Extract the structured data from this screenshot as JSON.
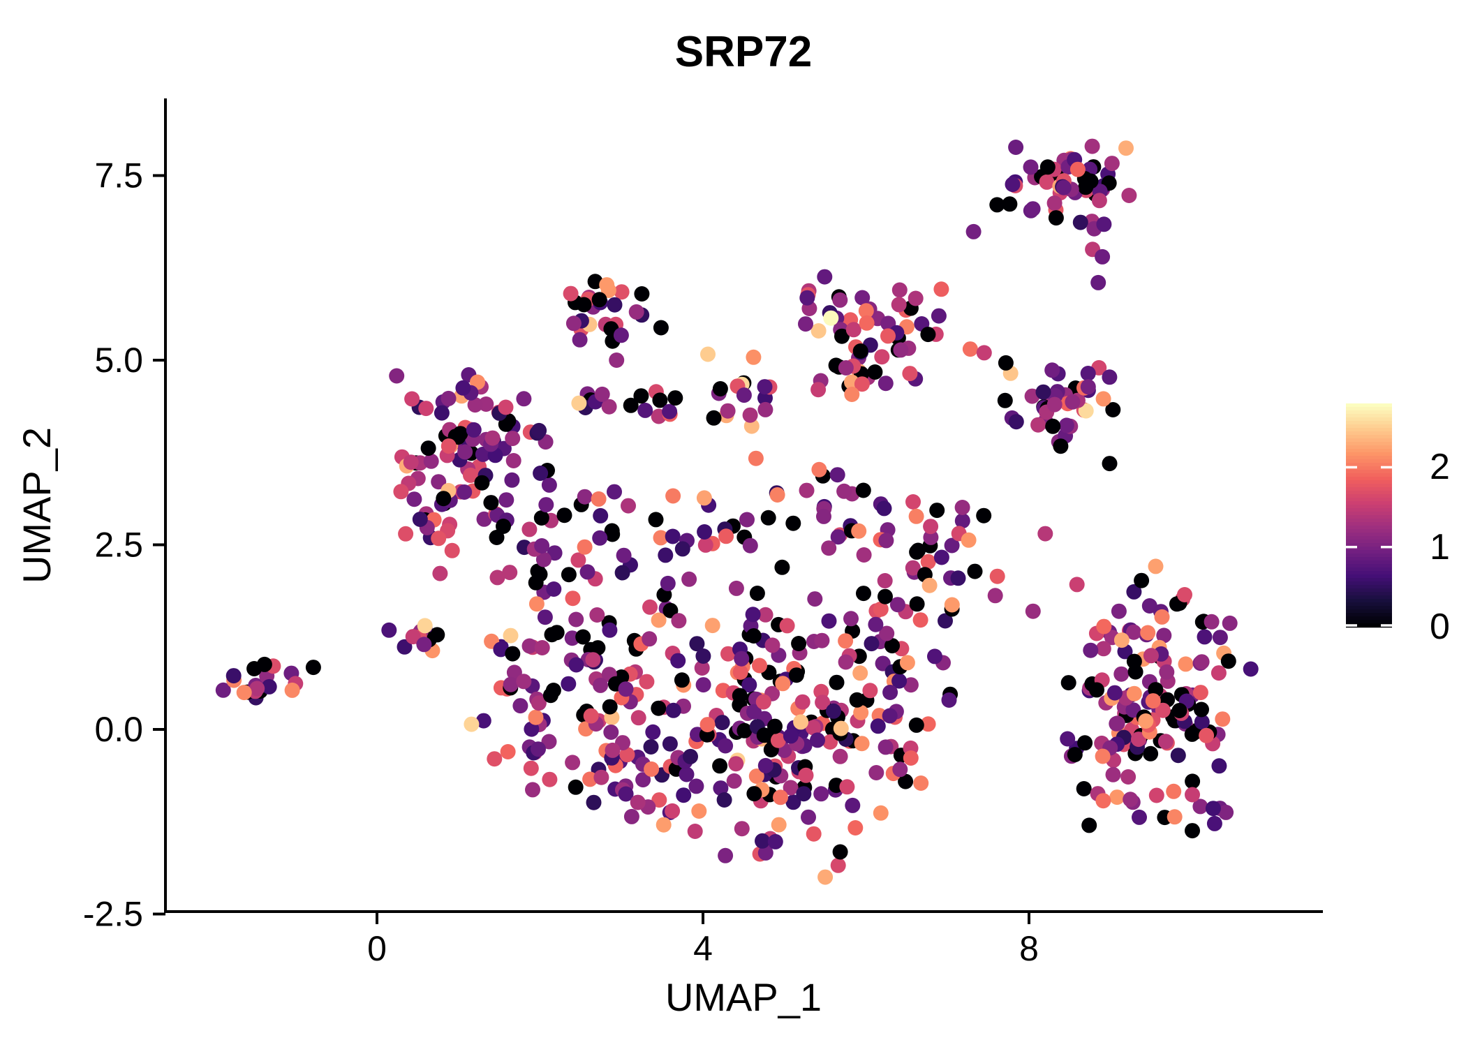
{
  "title": "SRP72",
  "chart_data": {
    "type": "scatter",
    "title": "SRP72",
    "xlabel": "UMAP_1",
    "ylabel": "UMAP_2",
    "xlim": [
      -2.6,
      11.6
    ],
    "ylim": [
      -2.45,
      8.55
    ],
    "grid": false,
    "background": "#ffffff",
    "axis_color": "#000000",
    "point_radius_px": 11,
    "xticks": [
      {
        "value": 0,
        "label": "0"
      },
      {
        "value": 4,
        "label": "4"
      },
      {
        "value": 8,
        "label": "8"
      }
    ],
    "yticks": [
      {
        "value": -2.5,
        "label": "-2.5"
      },
      {
        "value": 0.0,
        "label": "0.0"
      },
      {
        "value": 2.5,
        "label": "2.5"
      },
      {
        "value": 5.0,
        "label": "5.0"
      },
      {
        "value": 7.5,
        "label": "7.5"
      }
    ],
    "colormap": {
      "name": "magma",
      "anchors": [
        "#000004",
        "#180f3d",
        "#440f76",
        "#721f81",
        "#9e2f7f",
        "#cd4071",
        "#f1605d",
        "#fd9567",
        "#feca8d",
        "#fcfdbf"
      ]
    },
    "color_domain": [
      0,
      2.8
    ],
    "legend": {
      "position": "right",
      "ticks": [
        {
          "value": 2,
          "label": "2"
        },
        {
          "value": 1,
          "label": "1"
        },
        {
          "value": 0,
          "label": "0"
        }
      ]
    },
    "seed": 7,
    "value_distribution_bins": [
      [
        0,
        0,
        21
      ],
      [
        0.45,
        0.95,
        27
      ],
      [
        0.95,
        1.35,
        21
      ],
      [
        1.35,
        1.85,
        19
      ],
      [
        1.85,
        2.3,
        10
      ],
      [
        2.3,
        2.6,
        2
      ]
    ],
    "clusters": [
      {
        "name": "top-right",
        "cx": 8.45,
        "cy": 7.45,
        "sx": 0.4,
        "sy": 0.28,
        "n": 50,
        "clip": [
          7.6,
          9.25,
          6.85,
          7.97
        ]
      },
      {
        "name": "right-middle",
        "cx": 8.5,
        "cy": 4.4,
        "sx": 0.42,
        "sy": 0.4,
        "n": 42,
        "clip": [
          7.7,
          9.35,
          3.55,
          5.2
        ]
      },
      {
        "name": "top-middle",
        "cx": 5.95,
        "cy": 5.4,
        "sx": 0.48,
        "sy": 0.45,
        "n": 62,
        "clip": [
          5.0,
          6.95,
          4.5,
          6.3
        ]
      },
      {
        "name": "top-left-small",
        "cx": 2.85,
        "cy": 5.62,
        "sx": 0.32,
        "sy": 0.3,
        "n": 27,
        "clip": [
          2.25,
          3.5,
          5.0,
          6.3
        ]
      },
      {
        "name": "left",
        "cx": 1.05,
        "cy": 3.75,
        "sx": 0.5,
        "sy": 0.55,
        "n": 95,
        "clip": [
          0.2,
          2.15,
          2.45,
          4.9
        ]
      },
      {
        "name": "left-tail",
        "cx": 1.6,
        "cy": 2.4,
        "sx": 0.5,
        "sy": 0.4,
        "n": 14,
        "clip": [
          0.6,
          2.8,
          1.7,
          3.2
        ]
      },
      {
        "name": "far-left",
        "cx": -1.55,
        "cy": 0.68,
        "sx": 0.17,
        "sy": 0.14,
        "n": 13,
        "clip": [
          -1.9,
          -1.2,
          0.4,
          0.97
        ]
      },
      {
        "name": "mini-clump",
        "cx": 0.48,
        "cy": 1.25,
        "sx": 0.2,
        "sy": 0.14,
        "n": 13,
        "clip": [
          0.1,
          0.9,
          0.95,
          1.55
        ]
      },
      {
        "name": "blob-left",
        "cx": 2.2,
        "cy": 0.7,
        "sx": 0.55,
        "sy": 0.7,
        "n": 70,
        "clip": [
          1.25,
          3.3,
          -0.9,
          2.1
        ]
      },
      {
        "name": "blob-mid-left",
        "cx": 3.2,
        "cy": 0.2,
        "sx": 0.6,
        "sy": 0.85,
        "n": 65,
        "clip": [
          2.3,
          4.3,
          -1.6,
          1.9
        ]
      },
      {
        "name": "blob-mid",
        "cx": 4.5,
        "cy": 0.25,
        "sx": 0.62,
        "sy": 0.95,
        "n": 85,
        "clip": [
          3.4,
          5.6,
          -2.1,
          1.9
        ]
      },
      {
        "name": "blob-mid-right",
        "cx": 5.4,
        "cy": 0.1,
        "sx": 0.6,
        "sy": 0.9,
        "n": 85,
        "clip": [
          4.5,
          6.5,
          -2.05,
          1.75
        ]
      },
      {
        "name": "blob-right",
        "cx": 6.2,
        "cy": 0.6,
        "sx": 0.5,
        "sy": 0.7,
        "n": 48,
        "clip": [
          5.6,
          7.05,
          -1.4,
          1.9
        ]
      },
      {
        "name": "blob-top",
        "cx": 3.4,
        "cy": 2.55,
        "sx": 0.85,
        "sy": 0.5,
        "n": 42,
        "clip": [
          1.6,
          5.1,
          1.9,
          3.4
        ]
      },
      {
        "name": "neck",
        "cx": 5.45,
        "cy": 3.2,
        "sx": 0.32,
        "sy": 0.5,
        "n": 17,
        "clip": [
          4.9,
          6.05,
          2.4,
          4.05
        ]
      },
      {
        "name": "center-right-group",
        "cx": 6.55,
        "cy": 2.6,
        "sx": 0.38,
        "sy": 0.42,
        "n": 22,
        "clip": [
          5.9,
          7.25,
          1.9,
          3.35
        ]
      },
      {
        "name": "bridge",
        "cx": 7.4,
        "cy": 2.2,
        "sx": 0.5,
        "sy": 0.55,
        "n": 12,
        "clip": [
          6.7,
          8.3,
          1.2,
          3.1
        ]
      },
      {
        "name": "strip-a",
        "cx": 2.75,
        "cy": 4.45,
        "sx": 0.26,
        "sy": 0.15,
        "n": 7,
        "clip": [
          2.35,
          3.2,
          4.2,
          4.7
        ]
      },
      {
        "name": "strip-b",
        "cx": 3.6,
        "cy": 4.4,
        "sx": 0.3,
        "sy": 0.18,
        "n": 9,
        "clip": [
          3.1,
          4.05,
          4.1,
          4.7
        ]
      },
      {
        "name": "strip-c",
        "cx": 4.35,
        "cy": 4.45,
        "sx": 0.3,
        "sy": 0.22,
        "n": 15,
        "clip": [
          3.9,
          4.9,
          4.1,
          4.85
        ]
      },
      {
        "name": "right-lower",
        "cx": 9.55,
        "cy": 0.45,
        "sx": 0.58,
        "sy": 0.85,
        "n": 155,
        "clip": [
          8.45,
          10.9,
          -1.4,
          2.3
        ]
      }
    ],
    "notable_points": [
      {
        "x": 4.06,
        "y": 5.08,
        "v": 2.5
      },
      {
        "x": 4.62,
        "y": 5.04,
        "v": 2.15
      },
      {
        "x": 5.57,
        "y": 5.57,
        "v": 2.78
      },
      {
        "x": 7.32,
        "y": 6.74,
        "v": 0.95
      },
      {
        "x": 7.28,
        "y": 5.15,
        "v": 1.95
      },
      {
        "x": 7.45,
        "y": 5.1,
        "v": 1.5
      },
      {
        "x": 8.8,
        "y": 6.78,
        "v": 1.05
      },
      {
        "x": 8.92,
        "y": 6.84,
        "v": 0.75
      },
      {
        "x": 8.78,
        "y": 6.5,
        "v": 1.45
      },
      {
        "x": 8.9,
        "y": 6.4,
        "v": 0.9
      },
      {
        "x": 8.85,
        "y": 6.05,
        "v": 0.85
      },
      {
        "x": -1.05,
        "y": 0.76,
        "v": 0.9
      },
      {
        "x": -1.0,
        "y": 0.62,
        "v": 1.5
      },
      {
        "x": -1.04,
        "y": 0.53,
        "v": 2.1
      },
      {
        "x": -0.78,
        "y": 0.84,
        "v": 0
      },
      {
        "x": -1.63,
        "y": 0.5,
        "v": 2.1
      },
      {
        "x": -1.38,
        "y": 0.88,
        "v": 0
      },
      {
        "x": 1.16,
        "y": 0.07,
        "v": 2.55
      },
      {
        "x": 1.64,
        "y": 1.27,
        "v": 2.5
      },
      {
        "x": 2.55,
        "y": 3.15,
        "v": 1.1
      },
      {
        "x": 2.72,
        "y": 3.12,
        "v": 2.0
      },
      {
        "x": 4.65,
        "y": 3.67,
        "v": 2.0
      },
      {
        "x": 2.82,
        "y": 6.02,
        "v": 2.2
      },
      {
        "x": 8.05,
        "y": 1.6,
        "v": 1.2
      },
      {
        "x": 8.2,
        "y": 2.65,
        "v": 1.4
      },
      {
        "x": 6.78,
        "y": 1.95,
        "v": 2.3
      },
      {
        "x": 5.2,
        "y": 0.1,
        "v": 2.45
      },
      {
        "x": 5.5,
        "y": -2.0,
        "v": 2.3
      },
      {
        "x": 2.0,
        "y": 2.1,
        "v": 0
      },
      {
        "x": 1.55,
        "y": 2.75,
        "v": 0
      },
      {
        "x": 2.3,
        "y": 2.9,
        "v": 0
      }
    ]
  }
}
